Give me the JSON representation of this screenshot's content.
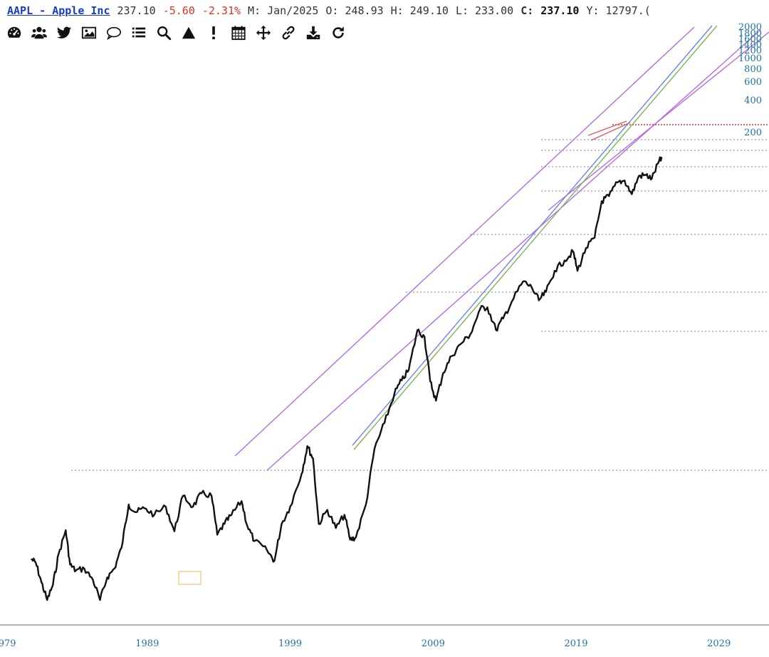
{
  "quote": {
    "ticker_label": "AAPL - Apple Inc",
    "last": "237.10",
    "change": "-5.60",
    "change_pct": "-2.31%",
    "period": "M: Jan/2025",
    "open": "O: 248.93",
    "high": "H: 249.10",
    "low": "L: 233.00",
    "close_label": "C:",
    "close_value": "237.10",
    "extra": "Y: 12797.("
  },
  "toolbar": {
    "icons": [
      "dashboard-icon",
      "users-icon",
      "twitter-icon",
      "image-icon",
      "comment-icon",
      "list-icon",
      "search-icon",
      "triangle-icon",
      "exclamation-icon",
      "calendar-icon",
      "move-icon",
      "link-icon",
      "download-icon",
      "refresh-icon"
    ]
  },
  "colors": {
    "price": "#111111",
    "channel_purple": "#b66ce0",
    "trend_blue": "#6a86e6",
    "trend_green": "#78b85a",
    "recent_red": "#e05a5a",
    "hline_red": "#c0392b",
    "axis_text": "#1f6fa8",
    "grid_dotted": "#9a9a9a"
  },
  "chart_data": {
    "type": "line",
    "scale": "log",
    "ylim": [
      0.12,
      2000
    ],
    "xlim": [
      1978.7,
      2032.5
    ],
    "x_ticks": [
      "1979",
      "1989",
      "1999",
      "2009",
      "2019",
      "2029"
    ],
    "y_ticks": [
      "200",
      "400",
      "600",
      "800",
      "1000",
      "1200",
      "1400",
      "1600",
      "1800",
      "2000"
    ],
    "series": [
      {
        "points": [
          [
            1980.9,
            0.35
          ],
          [
            1981.2,
            0.33
          ],
          [
            1981.6,
            0.24
          ],
          [
            1982.0,
            0.18
          ],
          [
            1982.4,
            0.23
          ],
          [
            1982.8,
            0.38
          ],
          [
            1983.3,
            0.56
          ],
          [
            1983.6,
            0.32
          ],
          [
            1984.0,
            0.29
          ],
          [
            1984.6,
            0.3
          ],
          [
            1985.2,
            0.25
          ],
          [
            1985.7,
            0.18
          ],
          [
            1986.2,
            0.26
          ],
          [
            1986.7,
            0.3
          ],
          [
            1987.2,
            0.42
          ],
          [
            1987.7,
            0.85
          ],
          [
            1988.2,
            0.75
          ],
          [
            1988.8,
            0.8
          ],
          [
            1989.5,
            0.72
          ],
          [
            1990.3,
            0.82
          ],
          [
            1990.9,
            0.55
          ],
          [
            1991.5,
            0.98
          ],
          [
            1992.2,
            0.82
          ],
          [
            1992.8,
            1.02
          ],
          [
            1993.5,
            0.98
          ],
          [
            1993.9,
            0.52
          ],
          [
            1994.4,
            0.62
          ],
          [
            1994.9,
            0.72
          ],
          [
            1995.6,
            0.9
          ],
          [
            1996.0,
            0.6
          ],
          [
            1996.5,
            0.47
          ],
          [
            1997.4,
            0.4
          ],
          [
            1997.9,
            0.34
          ],
          [
            1998.4,
            0.62
          ],
          [
            1999.0,
            0.82
          ],
          [
            1999.8,
            1.4
          ],
          [
            2000.2,
            2.2
          ],
          [
            2000.6,
            1.8
          ],
          [
            2001.0,
            0.62
          ],
          [
            2001.6,
            0.78
          ],
          [
            2002.2,
            0.58
          ],
          [
            2002.8,
            0.72
          ],
          [
            2003.2,
            0.48
          ],
          [
            2003.6,
            0.5
          ],
          [
            2004.3,
            0.85
          ],
          [
            2004.9,
            2.1
          ],
          [
            2005.6,
            3.2
          ],
          [
            2006.3,
            5.2
          ],
          [
            2006.8,
            6.4
          ],
          [
            2007.3,
            7.6
          ],
          [
            2007.9,
            14.5
          ],
          [
            2008.4,
            13.0
          ],
          [
            2008.8,
            6.3
          ],
          [
            2009.2,
            4.6
          ],
          [
            2009.7,
            7.2
          ],
          [
            2010.3,
            9.5
          ],
          [
            2010.9,
            11.5
          ],
          [
            2011.6,
            13.5
          ],
          [
            2012.3,
            20.5
          ],
          [
            2012.8,
            21.0
          ],
          [
            2013.4,
            14.5
          ],
          [
            2013.9,
            17.5
          ],
          [
            2014.5,
            23.0
          ],
          [
            2015.3,
            32.0
          ],
          [
            2015.9,
            29.0
          ],
          [
            2016.4,
            23.5
          ],
          [
            2016.9,
            27.0
          ],
          [
            2017.5,
            38.0
          ],
          [
            2018.2,
            45.0
          ],
          [
            2018.8,
            52.0
          ],
          [
            2019.1,
            38.0
          ],
          [
            2019.7,
            55.0
          ],
          [
            2020.3,
            65.0
          ],
          [
            2020.8,
            118.0
          ],
          [
            2021.3,
            128.0
          ],
          [
            2021.9,
            160.0
          ],
          [
            2022.4,
            165.0
          ],
          [
            2022.9,
            132.0
          ],
          [
            2023.4,
            178.0
          ],
          [
            2023.9,
            180.0
          ],
          [
            2024.3,
            170.0
          ],
          [
            2024.8,
            225.0
          ],
          [
            2025.0,
            237.1
          ]
        ]
      }
    ]
  }
}
